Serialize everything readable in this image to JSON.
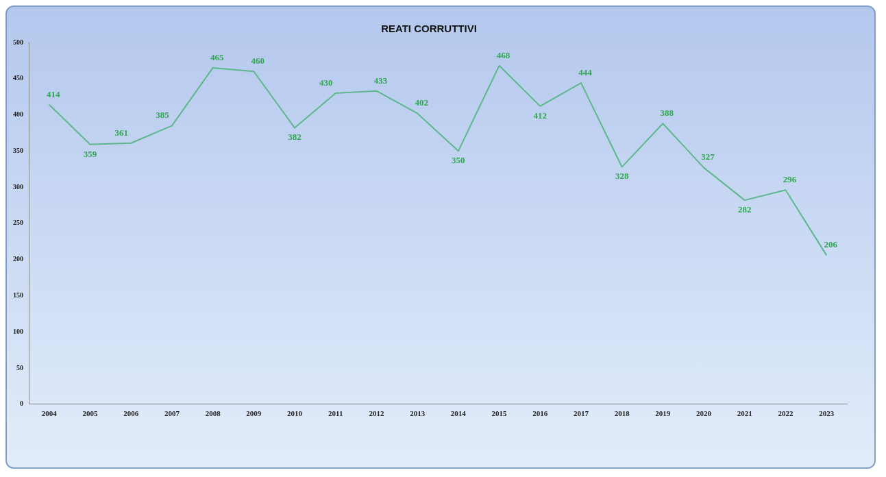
{
  "chart_data": {
    "type": "line",
    "title": "REATI CORRUTTIVI",
    "categories": [
      "2004",
      "2005",
      "2006",
      "2007",
      "2008",
      "2009",
      "2010",
      "2011",
      "2012",
      "2013",
      "2014",
      "2015",
      "2016",
      "2017",
      "2018",
      "2019",
      "2020",
      "2021",
      "2022",
      "2023"
    ],
    "series": [
      {
        "color": "#5cb88a",
        "values": [
          414,
          359,
          361,
          385,
          465,
          460,
          382,
          430,
          433,
          402,
          350,
          468,
          412,
          444,
          328,
          388,
          327,
          282,
          296,
          206
        ]
      }
    ],
    "ylim": [
      0,
      500
    ],
    "yticks": [
      0,
      50,
      100,
      150,
      200,
      250,
      300,
      350,
      400,
      450,
      500
    ],
    "data_labels": true,
    "grid": false,
    "legend": false,
    "marker": "none",
    "line_style": "solid"
  }
}
